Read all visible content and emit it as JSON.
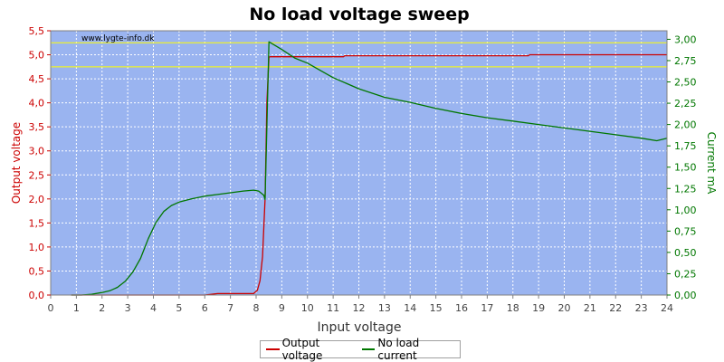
{
  "chart_data": {
    "type": "line",
    "title": "No load voltage sweep",
    "watermark": "www.lygte-info.dk",
    "xlabel": "Input voltage",
    "ylabel_left": "Output voltage",
    "ylabel_right": "Current mA",
    "xlim": [
      0,
      24
    ],
    "ylim_left": [
      0,
      5.5
    ],
    "ylim_right": [
      0,
      3.1
    ],
    "x_ticks": [
      "0",
      "1",
      "2",
      "3",
      "4",
      "5",
      "6",
      "7",
      "8",
      "9",
      "10",
      "11",
      "12",
      "13",
      "14",
      "15",
      "16",
      "17",
      "18",
      "19",
      "20",
      "21",
      "22",
      "23",
      "24"
    ],
    "y_left_ticks": [
      "0,0",
      "0,5",
      "1,0",
      "1,5",
      "2,0",
      "2,5",
      "3,0",
      "3,5",
      "4,0",
      "4,5",
      "5,0",
      "5,5"
    ],
    "y_right_ticks": [
      "0,00",
      "0,25",
      "0,50",
      "0,75",
      "1,00",
      "1,25",
      "1,50",
      "1,75",
      "2,00",
      "2,25",
      "2,50",
      "2,75",
      "3,00"
    ],
    "reference_lines_left": [
      5.25,
      4.75
    ],
    "grid": true,
    "legend_position": "bottom-center",
    "colors": {
      "plot_bg": "#9ab4f0",
      "output_voltage": "#cc0000",
      "no_load_current": "#007700",
      "reference_line": "#ffff00",
      "title": "#000000",
      "left_axis": "#cc0000",
      "right_axis": "#007700"
    },
    "series": [
      {
        "name": "Output voltage",
        "axis": "left",
        "x": [
          0.8,
          2,
          4,
          6,
          6.5,
          7,
          7.5,
          7.9,
          8.05,
          8.15,
          8.25,
          8.35,
          8.42,
          8.5,
          8.55,
          11.4,
          11.45,
          18.6,
          18.65,
          24
        ],
        "y": [
          0.0,
          0.0,
          0.0,
          0.0,
          0.03,
          0.03,
          0.03,
          0.03,
          0.1,
          0.3,
          0.8,
          2.0,
          4.0,
          4.95,
          4.96,
          4.96,
          4.98,
          4.98,
          5.0,
          5.0
        ]
      },
      {
        "name": "No load current",
        "axis": "right",
        "x": [
          0.8,
          1.2,
          1.6,
          2.0,
          2.3,
          2.6,
          2.9,
          3.2,
          3.5,
          3.8,
          4.1,
          4.4,
          4.7,
          5.0,
          5.5,
          6.0,
          6.5,
          7.0,
          7.5,
          7.9,
          8.1,
          8.3,
          8.35,
          8.5,
          9.0,
          9.5,
          10.0,
          11.0,
          12.0,
          13.0,
          14.0,
          15.0,
          16.0,
          17.0,
          18.0,
          19.0,
          20.0,
          21.0,
          22.0,
          23.0,
          23.6,
          24.0
        ],
        "y": [
          0.0,
          0.0,
          0.01,
          0.03,
          0.05,
          0.09,
          0.16,
          0.27,
          0.43,
          0.66,
          0.85,
          0.98,
          1.05,
          1.09,
          1.13,
          1.16,
          1.18,
          1.2,
          1.22,
          1.23,
          1.22,
          1.17,
          1.12,
          2.97,
          2.88,
          2.78,
          2.72,
          2.55,
          2.42,
          2.32,
          2.26,
          2.19,
          2.13,
          2.08,
          2.04,
          2.0,
          1.96,
          1.92,
          1.88,
          1.84,
          1.81,
          1.84
        ]
      }
    ]
  }
}
